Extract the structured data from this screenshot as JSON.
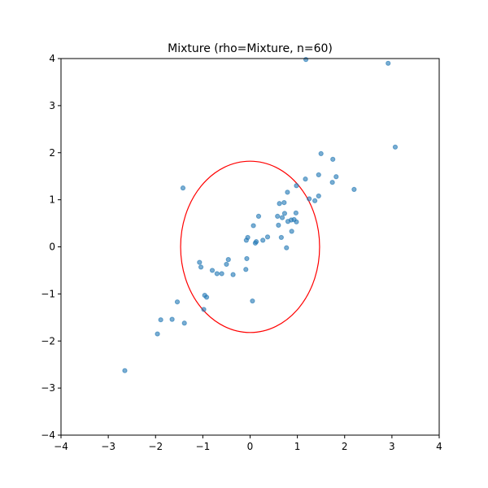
{
  "chart_data": {
    "type": "scatter",
    "title": "Mixture (rho=Mixture, n=60)",
    "xlabel": "",
    "ylabel": "",
    "xlim": [
      -4,
      4
    ],
    "ylim": [
      -4,
      4
    ],
    "x_ticks": [
      -4,
      -3,
      -2,
      -1,
      0,
      1,
      2,
      3,
      4
    ],
    "y_ticks": [
      -4,
      -3,
      -2,
      -1,
      0,
      1,
      2,
      3,
      4
    ],
    "x_tick_labels": [
      "−4",
      "−3",
      "−2",
      "−1",
      "0",
      "1",
      "2",
      "3",
      "4"
    ],
    "y_tick_labels": [
      "−4",
      "−3",
      "−2",
      "−1",
      "0",
      "1",
      "2",
      "3",
      "4"
    ],
    "grid": false,
    "legend": "none",
    "points": [
      {
        "x": 1.18,
        "y": 3.98
      },
      {
        "x": 2.92,
        "y": 3.9
      },
      {
        "x": 3.07,
        "y": 2.12
      },
      {
        "x": 1.5,
        "y": 1.98
      },
      {
        "x": 1.75,
        "y": 1.86
      },
      {
        "x": 1.45,
        "y": 1.53
      },
      {
        "x": 1.82,
        "y": 1.49
      },
      {
        "x": 1.17,
        "y": 1.44
      },
      {
        "x": 1.74,
        "y": 1.37
      },
      {
        "x": 0.98,
        "y": 1.3
      },
      {
        "x": -1.42,
        "y": 1.25
      },
      {
        "x": 2.2,
        "y": 1.22
      },
      {
        "x": 0.79,
        "y": 1.16
      },
      {
        "x": 1.45,
        "y": 1.08
      },
      {
        "x": 1.25,
        "y": 1.02
      },
      {
        "x": 1.37,
        "y": 0.98
      },
      {
        "x": 0.62,
        "y": 0.92
      },
      {
        "x": 0.72,
        "y": 0.94
      },
      {
        "x": 0.97,
        "y": 0.72
      },
      {
        "x": 0.73,
        "y": 0.71
      },
      {
        "x": 0.58,
        "y": 0.65
      },
      {
        "x": 0.68,
        "y": 0.62
      },
      {
        "x": 0.18,
        "y": 0.65
      },
      {
        "x": 0.93,
        "y": 0.58
      },
      {
        "x": 0.87,
        "y": 0.57
      },
      {
        "x": 0.8,
        "y": 0.54
      },
      {
        "x": 0.98,
        "y": 0.53
      },
      {
        "x": 0.6,
        "y": 0.46
      },
      {
        "x": 0.07,
        "y": 0.45
      },
      {
        "x": 0.88,
        "y": 0.33
      },
      {
        "x": 0.37,
        "y": 0.21
      },
      {
        "x": 0.66,
        "y": 0.2
      },
      {
        "x": -0.05,
        "y": 0.2
      },
      {
        "x": 0.27,
        "y": 0.14
      },
      {
        "x": -0.08,
        "y": 0.14
      },
      {
        "x": 0.13,
        "y": 0.11
      },
      {
        "x": 0.11,
        "y": 0.08
      },
      {
        "x": 0.77,
        "y": -0.02
      },
      {
        "x": -0.07,
        "y": -0.25
      },
      {
        "x": -0.46,
        "y": -0.27
      },
      {
        "x": -1.07,
        "y": -0.33
      },
      {
        "x": -0.5,
        "y": -0.37
      },
      {
        "x": -1.04,
        "y": -0.43
      },
      {
        "x": -0.09,
        "y": -0.48
      },
      {
        "x": -0.8,
        "y": -0.5
      },
      {
        "x": -0.7,
        "y": -0.57
      },
      {
        "x": -0.6,
        "y": -0.57
      },
      {
        "x": -0.36,
        "y": -0.59
      },
      {
        "x": -0.96,
        "y": -1.03
      },
      {
        "x": -0.92,
        "y": -1.07
      },
      {
        "x": 0.05,
        "y": -1.15
      },
      {
        "x": -1.54,
        "y": -1.17
      },
      {
        "x": -0.98,
        "y": -1.33
      },
      {
        "x": -1.65,
        "y": -1.54
      },
      {
        "x": -1.89,
        "y": -1.55
      },
      {
        "x": -1.39,
        "y": -1.62
      },
      {
        "x": -1.96,
        "y": -1.85
      },
      {
        "x": -2.65,
        "y": -2.63
      }
    ],
    "ellipse": {
      "center": [
        0.0,
        0.0
      ],
      "x_semi_axis": 1.47,
      "y_semi_axis": 1.82,
      "color": "#ff0000"
    },
    "point_color": "#1f77b4"
  }
}
